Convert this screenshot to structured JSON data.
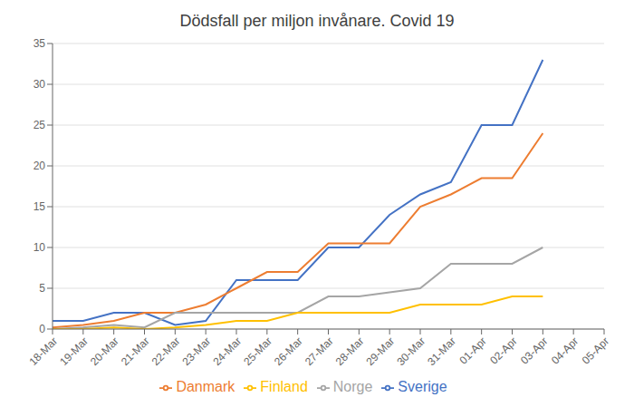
{
  "chart_data": {
    "type": "line",
    "title": "Dödsfall per miljon invånare. Covid 19",
    "categories": [
      "18-Mar",
      "19-Mar",
      "20-Mar",
      "21-Mar",
      "22-Mar",
      "23-Mar",
      "24-Mar",
      "25-Mar",
      "26-Mar",
      "27-Mar",
      "28-Mar",
      "29-Mar",
      "30-Mar",
      "31-Mar",
      "01-Apr",
      "02-Apr",
      "03-Apr",
      "04-Apr",
      "05-Apr"
    ],
    "series": [
      {
        "name": "Sverige",
        "color": "#4472C4",
        "values": [
          1.0,
          1.0,
          2.0,
          2.0,
          0.5,
          1.0,
          6.0,
          6.0,
          6.0,
          10.0,
          10.0,
          14.0,
          16.5,
          18.0,
          25.0,
          25.0,
          33.0,
          null,
          null
        ]
      },
      {
        "name": "Danmark",
        "color": "#ED7D31",
        "values": [
          0.2,
          0.5,
          1.0,
          2.0,
          2.0,
          3.0,
          5.0,
          7.0,
          7.0,
          10.5,
          10.5,
          10.5,
          15.0,
          16.5,
          18.5,
          18.5,
          24.0,
          null,
          null
        ]
      },
      {
        "name": "Norge",
        "color": "#A5A5A5",
        "values": [
          0.0,
          0.2,
          0.5,
          0.2,
          2.0,
          2.0,
          2.0,
          2.0,
          2.0,
          4.0,
          4.0,
          4.5,
          5.0,
          8.0,
          8.0,
          8.0,
          10.0,
          null,
          null
        ]
      },
      {
        "name": "Finland",
        "color": "#FFC000",
        "values": [
          0.0,
          0.0,
          0.2,
          0.0,
          0.2,
          0.5,
          1.0,
          1.0,
          2.0,
          2.0,
          2.0,
          2.0,
          3.0,
          3.0,
          3.0,
          4.0,
          4.0,
          null,
          null
        ]
      }
    ],
    "ylim": [
      0,
      35
    ],
    "yticks": [
      0,
      5,
      10,
      15,
      20,
      25,
      30,
      35
    ],
    "grid": true,
    "legend": "bottom"
  }
}
